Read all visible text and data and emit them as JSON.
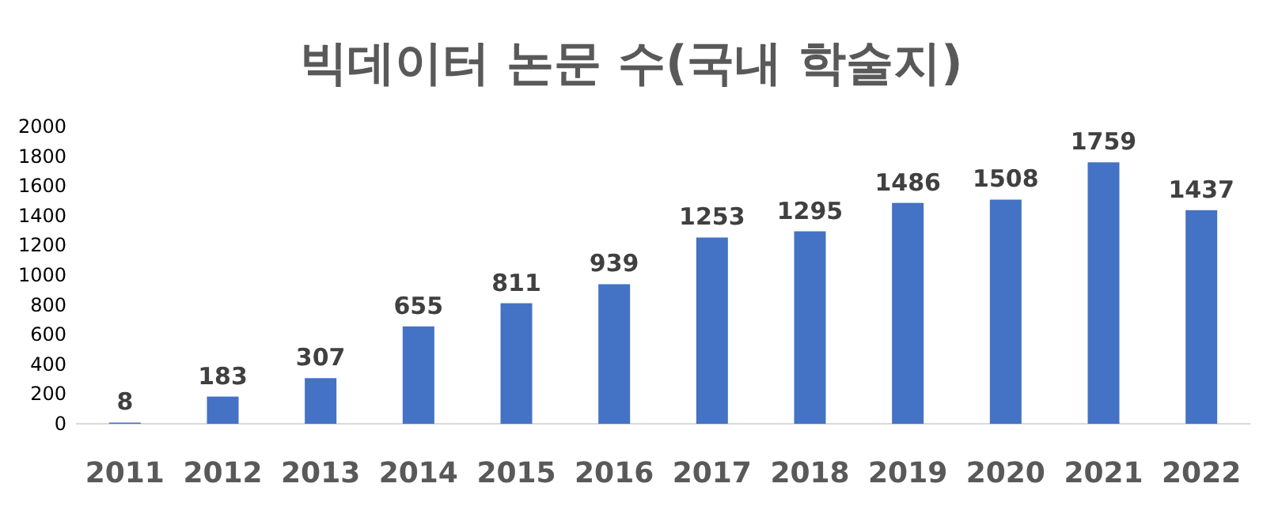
{
  "chart_data": {
    "type": "bar",
    "title": "빅데이터 논문 수(국내 학술지)",
    "categories": [
      "2011",
      "2012",
      "2013",
      "2014",
      "2015",
      "2016",
      "2017",
      "2018",
      "2019",
      "2020",
      "2021",
      "2022"
    ],
    "values": [
      8,
      183,
      307,
      655,
      811,
      939,
      1253,
      1295,
      1486,
      1508,
      1759,
      1437
    ],
    "color": "#4472c4",
    "ylim": [
      0,
      2000
    ],
    "yticks": [
      0,
      200,
      400,
      600,
      800,
      1000,
      1200,
      1400,
      1600,
      1800,
      2000
    ],
    "data_labels": true,
    "grid": false
  }
}
